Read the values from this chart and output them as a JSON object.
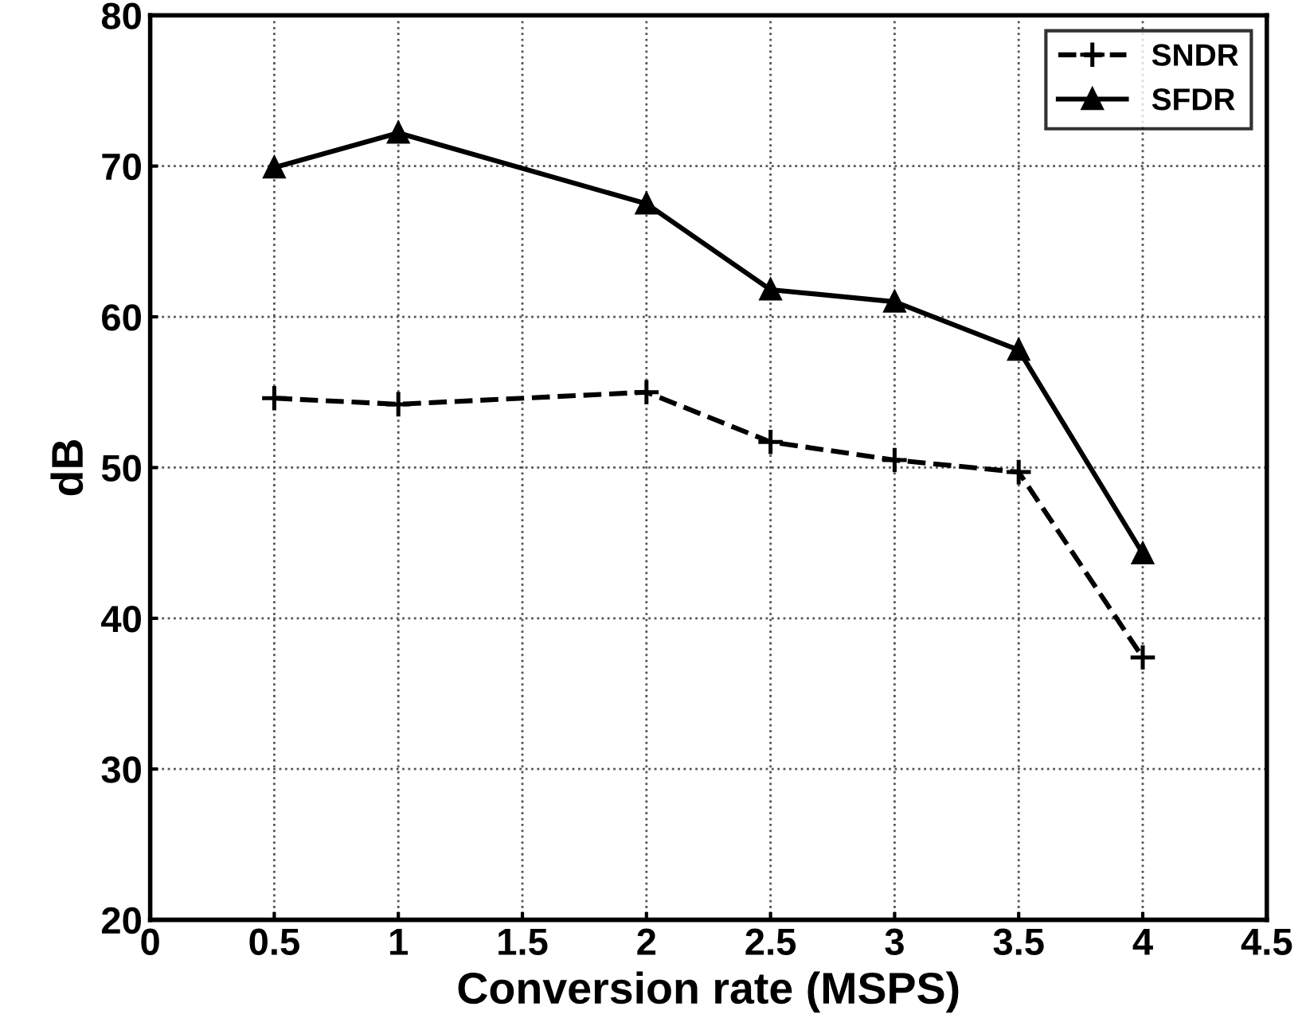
{
  "chart_data": {
    "type": "line",
    "xlabel": "Conversion rate (MSPS)",
    "ylabel": "dB",
    "x": [
      0.5,
      1,
      2,
      2.5,
      3,
      3.5,
      4
    ],
    "series": [
      {
        "name": "SNDR",
        "color": "#000000",
        "marker": "cross",
        "line_style": "dashed",
        "values": [
          54.6,
          54.2,
          55.0,
          51.7,
          50.5,
          49.7,
          37.4
        ]
      },
      {
        "name": "SFDR",
        "color": "#000000",
        "marker": "triangle",
        "line_style": "solid",
        "values": [
          69.9,
          72.2,
          67.5,
          61.8,
          61.0,
          57.8,
          44.3
        ]
      }
    ],
    "xlim": [
      0,
      4.5
    ],
    "xticks": [
      0,
      0.5,
      1,
      1.5,
      2,
      2.5,
      3,
      3.5,
      4,
      4.5
    ],
    "ylim": [
      20,
      80
    ],
    "yticks": [
      20,
      30,
      40,
      50,
      60,
      70,
      80
    ],
    "grid": true,
    "legend": "top right"
  }
}
